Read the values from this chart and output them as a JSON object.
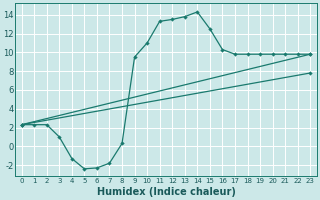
{
  "xlabel": "Humidex (Indice chaleur)",
  "bg_color": "#cce8e8",
  "grid_color": "#ffffff",
  "line_color": "#1a7a6e",
  "xlim": [
    -0.5,
    23.5
  ],
  "ylim": [
    -3.2,
    15.2
  ],
  "xticks": [
    0,
    1,
    2,
    3,
    4,
    5,
    6,
    7,
    8,
    9,
    10,
    11,
    12,
    13,
    14,
    15,
    16,
    17,
    18,
    19,
    20,
    21,
    22,
    23
  ],
  "yticks": [
    -2,
    0,
    2,
    4,
    6,
    8,
    10,
    12,
    14
  ],
  "line1_x": [
    0,
    1,
    2,
    3,
    4,
    5,
    6,
    7,
    8,
    9,
    10,
    11,
    12,
    13,
    14,
    15,
    16,
    17,
    18,
    19,
    20,
    21,
    22,
    23
  ],
  "line1_y": [
    2.3,
    2.3,
    2.3,
    1.0,
    -1.3,
    -2.4,
    -2.3,
    -1.8,
    0.3,
    9.5,
    11.0,
    13.3,
    13.5,
    13.8,
    14.3,
    12.5,
    10.3,
    9.8,
    9.8,
    9.8,
    9.8,
    9.8,
    9.8,
    9.8
  ],
  "line2_x": [
    0,
    23
  ],
  "line2_y": [
    2.3,
    9.8
  ],
  "line3_x": [
    0,
    23
  ],
  "line3_y": [
    2.3,
    7.8
  ]
}
